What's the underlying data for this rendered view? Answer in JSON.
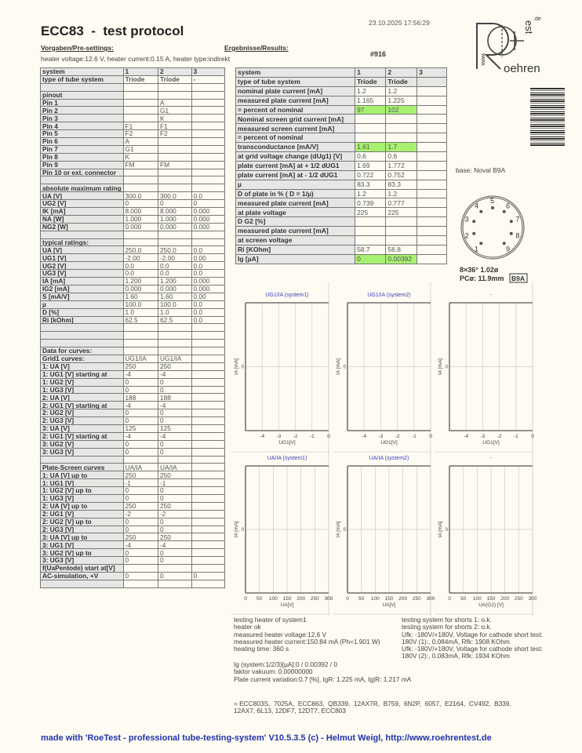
{
  "header": {
    "title": "ECC83  -  test protocol",
    "datetime": "23.10.2025  17:56:29",
    "presettings_label": "Vorgaben/Pre-settings:",
    "results_label": "Ergebnisse/Results:",
    "heater_info": "heater voltage:12.6 V, heater current:0.15 A, heater type:indirekt",
    "test_number": "#916"
  },
  "logo": {
    "text": "www.Roehrentest.de"
  },
  "base": {
    "label": "base: Noval B9A",
    "pins": [
      "1",
      "2",
      "3",
      "4",
      "5",
      "6",
      "7",
      "8",
      "9"
    ],
    "spec_line1": "8×36°  1.02ø",
    "spec_line2": "PCø: 11.9mm",
    "spec_badge": "B9A"
  },
  "presettings_table": [
    [
      "system",
      "1",
      "2",
      "3"
    ],
    [
      "type of tube system",
      "Triode",
      "Triode",
      "-"
    ],
    [
      "",
      "",
      "",
      ""
    ],
    [
      "pinout",
      "",
      "",
      ""
    ],
    [
      "Pin 1",
      "",
      "A",
      ""
    ],
    [
      "Pin 2",
      "",
      "G1",
      ""
    ],
    [
      "Pin 3",
      "",
      "K",
      ""
    ],
    [
      "Pin 4",
      "F1",
      "F1",
      ""
    ],
    [
      "Pin 5",
      "F2",
      "F2",
      ""
    ],
    [
      "Pin 6",
      "A",
      "",
      ""
    ],
    [
      "Pin 7",
      "G1",
      "",
      ""
    ],
    [
      "Pin 8",
      "K",
      "",
      ""
    ],
    [
      "Pin 9",
      "FM",
      "FM",
      ""
    ],
    [
      "Pin 10 or ext. connector",
      "",
      "",
      ""
    ],
    [
      "",
      "",
      "",
      ""
    ],
    [
      "absolute maximum rating",
      "",
      "",
      ""
    ],
    [
      "UA [V]",
      "300.0",
      "300.0",
      "0.0"
    ],
    [
      "UG2 [V]",
      "0",
      "0",
      "0"
    ],
    [
      "IK [mA]",
      "8.000",
      "8.000",
      "0.000"
    ],
    [
      "NA [W]",
      "1.000",
      "1.000",
      "0.000"
    ],
    [
      "NG2 [W]",
      "0.000",
      "0.000",
      "0.000"
    ],
    [
      "",
      "",
      "",
      ""
    ],
    [
      "typical ratings:",
      "",
      "",
      ""
    ],
    [
      "UA [V]",
      "250.0",
      "250.0",
      "0.0"
    ],
    [
      "UG1 [V]",
      "-2.00",
      "-2.00",
      "0.00"
    ],
    [
      "UG2 [V]",
      "0.0",
      "0.0",
      "0.0"
    ],
    [
      "UG3 [V]",
      "0.0",
      "0.0",
      "0.0"
    ],
    [
      "IA [mA]",
      "1.200",
      "1.200",
      "0.000"
    ],
    [
      "IG2 [mA]",
      "0.000",
      "0.000",
      "0.000"
    ],
    [
      "S [mA/V]",
      "1.60",
      "1.60",
      "0.00"
    ],
    [
      "µ",
      "100.0",
      "100.0",
      "0.0"
    ],
    [
      "D [%]",
      "1.0",
      "1.0",
      "0.0"
    ],
    [
      "Ri [kOhm]",
      "62.5",
      "62.5",
      "0.0"
    ],
    [
      "",
      "",
      "",
      ""
    ],
    [
      "",
      "",
      "",
      ""
    ],
    [
      "",
      "",
      "",
      ""
    ],
    [
      "Data for curves:",
      "",
      "",
      ""
    ],
    [
      "Grid1 curves:",
      "UG1/IA",
      "UG1/IA",
      ""
    ],
    [
      "1: UA [V]",
      "250",
      "250",
      ""
    ],
    [
      "1: UG1 [V] starting at",
      "-4",
      "-4",
      ""
    ],
    [
      "1: UG2 [V]",
      "0",
      "0",
      ""
    ],
    [
      "1: UG3 [V]",
      "0",
      "0",
      ""
    ],
    [
      "2: UA [V]",
      "188",
      "188",
      ""
    ],
    [
      "2: UG1 [V] starting at",
      "-4",
      "-4",
      ""
    ],
    [
      "2: UG2 [V]",
      "0",
      "0",
      ""
    ],
    [
      "2: UG3 [V]",
      "0",
      "0",
      ""
    ],
    [
      "3: UA [V]",
      "125",
      "125",
      ""
    ],
    [
      "2: UG1 [V] starting at",
      "-4",
      "-4",
      ""
    ],
    [
      "3: UG2 [V]",
      "0",
      "0",
      ""
    ],
    [
      "3: UG3 [V]",
      "0",
      "0",
      ""
    ],
    [
      "",
      "",
      "",
      ""
    ],
    [
      "Plate-Screen curves",
      "UA/IA",
      "UA/IA",
      ""
    ],
    [
      "1: UA [V] up to",
      "250",
      "250",
      ""
    ],
    [
      "1: UG1 [V]",
      "-1",
      "-1",
      ""
    ],
    [
      "1: UG2 [V] up to",
      "0",
      "0",
      ""
    ],
    [
      "1: UG3 [V]",
      "0",
      "0",
      ""
    ],
    [
      "2: UA [V] up to",
      "250",
      "250",
      ""
    ],
    [
      "2: UG1 [V]",
      "-2",
      "-2",
      ""
    ],
    [
      "2: UG2 [V] up to",
      "0",
      "0",
      ""
    ],
    [
      "2: UG3 [V]",
      "0",
      "0",
      ""
    ],
    [
      "3: UA [V] up to",
      "250",
      "250",
      ""
    ],
    [
      "3: UG1 [V]",
      "-4",
      "-4",
      ""
    ],
    [
      "3: UG2 [V] up to",
      "0",
      "0",
      ""
    ],
    [
      "3: UG3 [V]",
      "0",
      "0",
      ""
    ],
    [
      "f(UaPentode) start at[V]",
      "",
      "",
      ""
    ],
    [
      "AC-simulation, +V",
      "0",
      "0",
      "0"
    ],
    [
      "",
      "",
      "",
      ""
    ]
  ],
  "results_table": [
    [
      "system",
      "1",
      "2",
      "3"
    ],
    [
      "type of tube system",
      "Triode",
      "Triode",
      ""
    ],
    [
      "nominal plate current [mA]",
      "1.2",
      "1.2",
      ""
    ],
    [
      "measured plate current [mA]",
      "1.165",
      "1.225",
      ""
    ],
    [
      "= percent of nominal",
      "97",
      "102",
      ""
    ],
    [
      "Nominal screen grid current [mA]",
      "",
      "",
      ""
    ],
    [
      "measured screen current [mA]",
      "",
      "",
      ""
    ],
    [
      "= percent of nominal",
      "",
      "",
      ""
    ],
    [
      "transconductance [mA/V]",
      "1.61",
      "1.7",
      ""
    ],
    [
      "at grid voltage change (dUg1) [V]",
      "0.6",
      "0.6",
      ""
    ],
    [
      "plate current [mA] at + 1/2 dUG1",
      "1.69",
      "1.772",
      ""
    ],
    [
      "plate current [mA] at - 1/2 dUG1",
      "0.722",
      "0.752",
      ""
    ],
    [
      "µ",
      "83.3",
      "83.3",
      ""
    ],
    [
      "D of plate in % ( D = 1/µ)",
      "1.2",
      "1.2",
      ""
    ],
    [
      "measured plate current [mA]",
      "0.739",
      "0.777",
      ""
    ],
    [
      "at plate voltage",
      "225",
      "225",
      ""
    ],
    [
      "D G2 [%]",
      "",
      "",
      ""
    ],
    [
      "measured plate current [mA]",
      "",
      "",
      ""
    ],
    [
      "at screen voltage",
      "",
      "",
      ""
    ],
    [
      "Ri [KOhm]",
      "58.7",
      "56.8",
      ""
    ],
    [
      "Ig [µA]",
      "0",
      "0.00392",
      ""
    ]
  ],
  "results_highlight_rows": [
    4,
    8,
    20
  ],
  "highlight_color": "#a8f070",
  "chart_data": [
    {
      "type": "line",
      "title": "UG1/IA (system1)",
      "xlabel": "UG1[V]",
      "ylabel": "IA [mA]",
      "xlim": [
        -5,
        0
      ],
      "xticks": [
        "-4",
        "-3",
        "-2",
        "-1",
        "0"
      ],
      "yticks": [
        "0"
      ],
      "series": []
    },
    {
      "type": "line",
      "title": "UG1/IA (system2)",
      "xlabel": "UG1[V]",
      "ylabel": "IA [mA]",
      "xlim": [
        -5,
        0
      ],
      "xticks": [
        "-4",
        "-3",
        "-2",
        "-1",
        "0"
      ],
      "yticks": [
        "0"
      ],
      "series": []
    },
    {
      "type": "line",
      "title": "-",
      "xlabel": "UG1[V]",
      "ylabel": "IA [mA]",
      "xlim": [
        -5,
        0
      ],
      "xticks": [
        "-4",
        "-3",
        "-2",
        "-1",
        "0"
      ],
      "yticks": [
        "0"
      ],
      "series": []
    },
    {
      "type": "line",
      "title": "UA/IA (system1)",
      "xlabel": "UA[V]",
      "ylabel": "IA [mA]",
      "xlim": [
        0,
        300
      ],
      "xticks": [
        "0",
        "50",
        "100",
        "150",
        "200",
        "250",
        "300"
      ],
      "yticks": [
        "0"
      ],
      "series": []
    },
    {
      "type": "line",
      "title": "UA/IA (system2)",
      "xlabel": "UA[V]",
      "ylabel": "IA [mA]",
      "xlim": [
        0,
        300
      ],
      "xticks": [
        "0",
        "50",
        "100",
        "150",
        "200",
        "250",
        "300"
      ],
      "yticks": [
        "0"
      ],
      "series": []
    },
    {
      "type": "line",
      "title": "-",
      "xlabel": "UA(G2) [V]",
      "ylabel": "IA [mA]",
      "xlim": [
        0,
        300
      ],
      "xticks": [
        "0",
        "50",
        "100",
        "150",
        "200",
        "250",
        "300"
      ],
      "yticks": [
        "0"
      ],
      "series": []
    }
  ],
  "chart_title_color": "#4040c0",
  "notes": {
    "heater": "testing heater of system1\nheater ok\nmeasured heater voltage:12.6 V\nmeasured heater current:150.84 mA (Ph=1.901 W)\nheating time: 360 s",
    "shorts": "testing system for shorts 1: o.k.\ntesting system for shorts 2: o.k.\nUfk: -180V/+180V, Voltage for cathode short test:\n180V (1):, 0.084mA, Rfk: 1908 KOhm\nUfk: -180V/+180V, Voltage for cathode short test:\n180V (2):, 0.083mA, Rfk: 1934 KOhm",
    "grid": "Ig (system:1/2/3)[µA]:0 / 0.00392 / 0\nfaktor vakuum: 0.00000000\nPlate current variation:0.7 [%], IgR: 1.225 mA, Ig|R: 1.217 mA",
    "equivalents": "= ECC803S,  7025A,  ECC863,  QB339,  12AX7R,  B759,  6N2P,  6057,  E2164,  CV492,  B339,\n12AX7, 6L13, 12DF7, 12DT7, ECC803"
  },
  "footer": "made with 'RoeTest - professional tube-testing-system' V10.5.3.5 (c) - Helmut Weigl, http://www.roehrentest.de"
}
